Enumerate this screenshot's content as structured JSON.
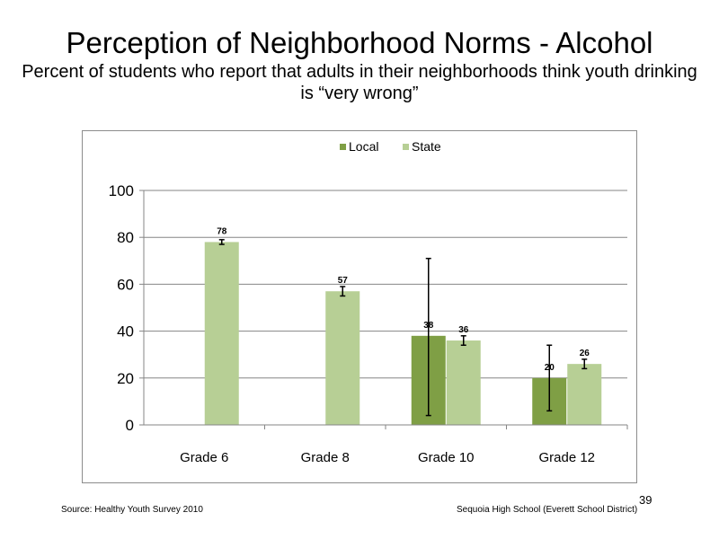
{
  "slide": {
    "title": "Perception  of Neighborhood  Norms - Alcohol",
    "subtitle": "Percent of students  who report that adults in their neighborhoods  think youth drinking  is “very wrong”",
    "source": "Source: Healthy Youth Survey 2010",
    "school": "Sequoia High School (Everett School District)",
    "page_number": "39"
  },
  "chart_data": {
    "type": "bar",
    "categories": [
      "Grade 6",
      "Grade 8",
      "Grade 10",
      "Grade 12"
    ],
    "series": [
      {
        "name": "Local",
        "color": "#7f9f45",
        "values": [
          null,
          null,
          38,
          20
        ],
        "error_low": [
          null,
          null,
          4,
          6
        ],
        "error_high": [
          null,
          null,
          71,
          34
        ],
        "labels": [
          "",
          "",
          "38",
          "20"
        ]
      },
      {
        "name": "State",
        "color": "#b7cf95",
        "values": [
          78,
          57,
          36,
          26
        ],
        "error_low": [
          77,
          55,
          34,
          24
        ],
        "error_high": [
          79,
          59,
          38,
          28
        ],
        "labels": [
          "78",
          "57",
          "36",
          "26"
        ]
      }
    ],
    "ylim": [
      0,
      100
    ],
    "yticks": [
      0,
      20,
      40,
      60,
      80,
      100
    ],
    "grid": true,
    "legend_position": "top",
    "xlabel": "",
    "ylabel": ""
  }
}
